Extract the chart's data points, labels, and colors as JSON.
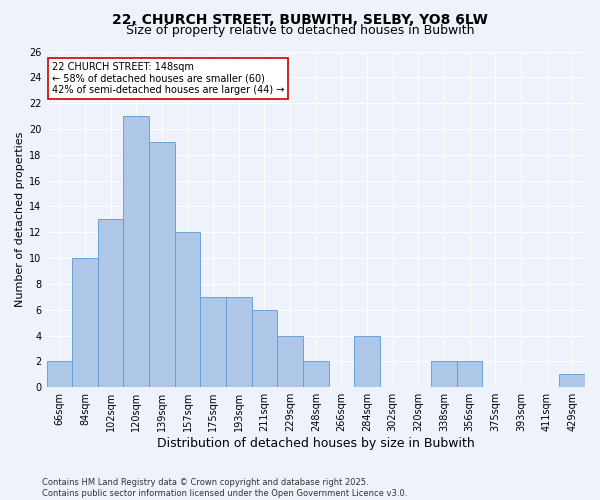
{
  "title1": "22, CHURCH STREET, BUBWITH, SELBY, YO8 6LW",
  "title2": "Size of property relative to detached houses in Bubwith",
  "xlabel": "Distribution of detached houses by size in Bubwith",
  "ylabel": "Number of detached properties",
  "bar_labels": [
    "66sqm",
    "84sqm",
    "102sqm",
    "120sqm",
    "139sqm",
    "157sqm",
    "175sqm",
    "193sqm",
    "211sqm",
    "229sqm",
    "248sqm",
    "266sqm",
    "284sqm",
    "302sqm",
    "320sqm",
    "338sqm",
    "356sqm",
    "375sqm",
    "393sqm",
    "411sqm",
    "429sqm"
  ],
  "bar_values": [
    2,
    10,
    13,
    21,
    19,
    12,
    7,
    7,
    6,
    4,
    2,
    0,
    4,
    0,
    0,
    2,
    2,
    0,
    0,
    0,
    1
  ],
  "bar_color": "#aec6e8",
  "bar_edgecolor": "#5b9bd5",
  "background_color": "#eef3fb",
  "annotation_box_text": "22 CHURCH STREET: 148sqm\n← 58% of detached houses are smaller (60)\n42% of semi-detached houses are larger (44) →",
  "annotation_box_color": "#ffffff",
  "annotation_box_edgecolor": "#cc0000",
  "ylim": [
    0,
    26
  ],
  "yticks": [
    0,
    2,
    4,
    6,
    8,
    10,
    12,
    14,
    16,
    18,
    20,
    22,
    24,
    26
  ],
  "footer": "Contains HM Land Registry data © Crown copyright and database right 2025.\nContains public sector information licensed under the Open Government Licence v3.0.",
  "grid_color": "#ffffff",
  "title1_fontsize": 10,
  "title2_fontsize": 9,
  "xlabel_fontsize": 9,
  "ylabel_fontsize": 8,
  "tick_fontsize": 7,
  "annot_fontsize": 7,
  "footer_fontsize": 6
}
